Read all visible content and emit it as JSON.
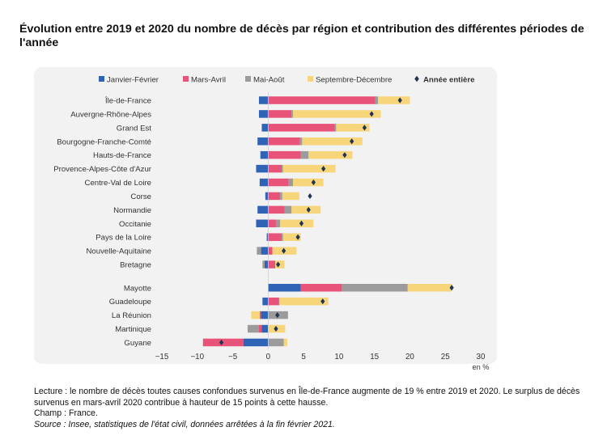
{
  "title": "Évolution entre 2019 et 2020 du nombre de décès par région et contribution des différentes périodes de l'année",
  "notes": {
    "lecture": "Lecture : le nombre de décès toutes causes confondues survenus en Île-de-France augmente de 19 % entre 2019 et 2020. Le surplus de décès survenus en mars-avril 2020 contribue à hauteur de 15 points à cette hausse.",
    "champ": "Champ : France.",
    "source": "Source : Insee, statistiques de l'état civil, données arrêtées à la fin février 2021."
  },
  "chart_data": {
    "type": "bar",
    "orientation": "horizontal",
    "stacked": true,
    "unit": "en %",
    "xlim": [
      -15,
      30
    ],
    "xticks": [
      "−15",
      "−10",
      "−5",
      "0",
      "5",
      "10",
      "15",
      "20",
      "25",
      "30"
    ],
    "categories": [
      "Île-de-France",
      "Auvergne-Rhône-Alpes",
      "Grand Est",
      "Bourgogne-Franche-Comté",
      "Hauts-de-France",
      "Provence-Alpes-Côte d'Azur",
      "Centre-Val de Loire",
      "Corse",
      "Normandie",
      "Occitanie",
      "Pays de la Loire",
      "Nouvelle-Aquitaine",
      "Bretagne",
      "Mayotte",
      "Guadeloupe",
      "La Réunion",
      "Martinique",
      "Guyane"
    ],
    "group_break_after": 12,
    "series": [
      {
        "name": "Janvier-Février",
        "color": "#2f63b5",
        "values": [
          -1.3,
          -1.3,
          -0.9,
          -1.5,
          -1.1,
          -1.7,
          -1.2,
          -0.4,
          -1.5,
          -1.7,
          -0.2,
          -1.0,
          -0.5,
          4.6,
          -0.8,
          -1.0,
          -0.9,
          -3.5
        ]
      },
      {
        "name": "Mars-Avril",
        "color": "#e8537a",
        "values": [
          15.1,
          3.3,
          9.4,
          4.5,
          4.6,
          1.9,
          2.9,
          1.7,
          2.3,
          1.1,
          1.9,
          0.6,
          1.0,
          5.8,
          1.5,
          -0.2,
          -0.4,
          -5.7
        ]
      },
      {
        "name": "Mai-Août",
        "color": "#9b9b9b",
        "values": [
          0.4,
          0.2,
          0.2,
          0.3,
          1.1,
          0.2,
          0.6,
          0.3,
          1.0,
          0.6,
          0.2,
          -0.6,
          -0.3,
          9.3,
          0.1,
          2.8,
          -1.6,
          2.2
        ]
      },
      {
        "name": "Septembre-Décembre",
        "color": "#f7d57a",
        "values": [
          4.5,
          12.4,
          4.7,
          8.5,
          6.2,
          7.4,
          4.3,
          2.4,
          4.1,
          4.7,
          2.5,
          3.4,
          1.3,
          6.2,
          6.9,
          -1.2,
          2.4,
          0.5
        ]
      }
    ],
    "total": {
      "name": "Année entière",
      "marker": "diamond",
      "color": "#1f3552",
      "values": [
        18.6,
        14.6,
        13.6,
        11.8,
        10.8,
        7.8,
        6.4,
        5.9,
        5.7,
        4.7,
        4.2,
        2.2,
        1.4,
        25.9,
        7.7,
        1.3,
        1.1,
        -6.6
      ]
    },
    "legend_position": "top",
    "grid": false
  }
}
